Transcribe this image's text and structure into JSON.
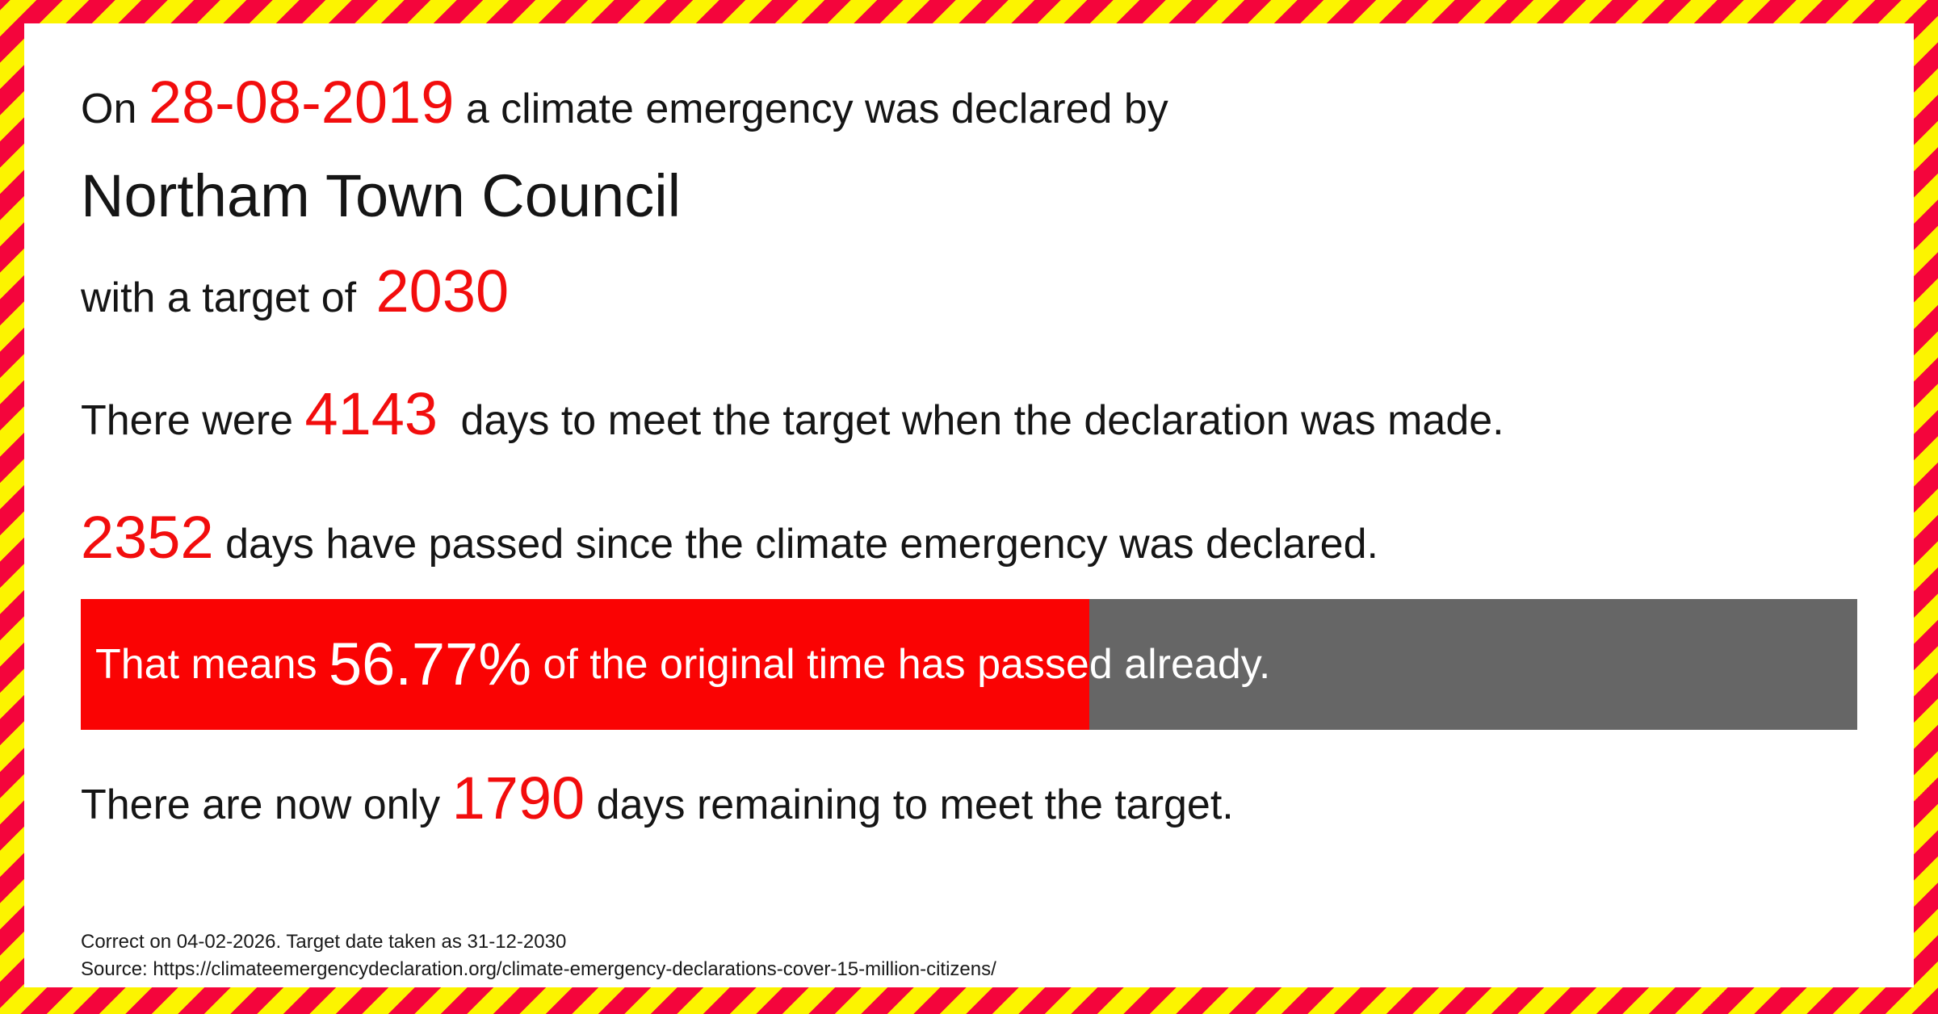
{
  "page": {
    "declaration": {
      "prefix": "On",
      "date": "28-08-2019",
      "suffix": "a climate emergency was declared by",
      "authority": "Northam Town Council",
      "target_prefix": "with a target of",
      "target_year": "2030"
    },
    "days_total": {
      "prefix": "There were",
      "value": "4143",
      "suffix": "days to meet the target when the declaration was made."
    },
    "days_passed": {
      "value": "2352",
      "suffix": "days have passed since the climate emergency was declared."
    },
    "progress": {
      "prefix": "That means",
      "percent": "56.77%",
      "percent_value": 56.77,
      "suffix": "of the original time has passed already."
    },
    "days_remaining": {
      "prefix": "There are now only",
      "value": "1790",
      "suffix": "days remaining to meet the target."
    },
    "footer": {
      "line1": "Correct on 04-02-2026. Target date taken as 31-12-2030",
      "line2": "Source: https://climateemergencydeclaration.org/climate-emergency-declarations-cover-15-million-citizens/"
    },
    "colors": {
      "accent_red": "#f20d0d",
      "bar_red": "#fa0303",
      "bar_gray": "#666666",
      "stripe_red": "#f4053c",
      "stripe_yellow": "#fcf400",
      "text_black": "#151515"
    }
  }
}
